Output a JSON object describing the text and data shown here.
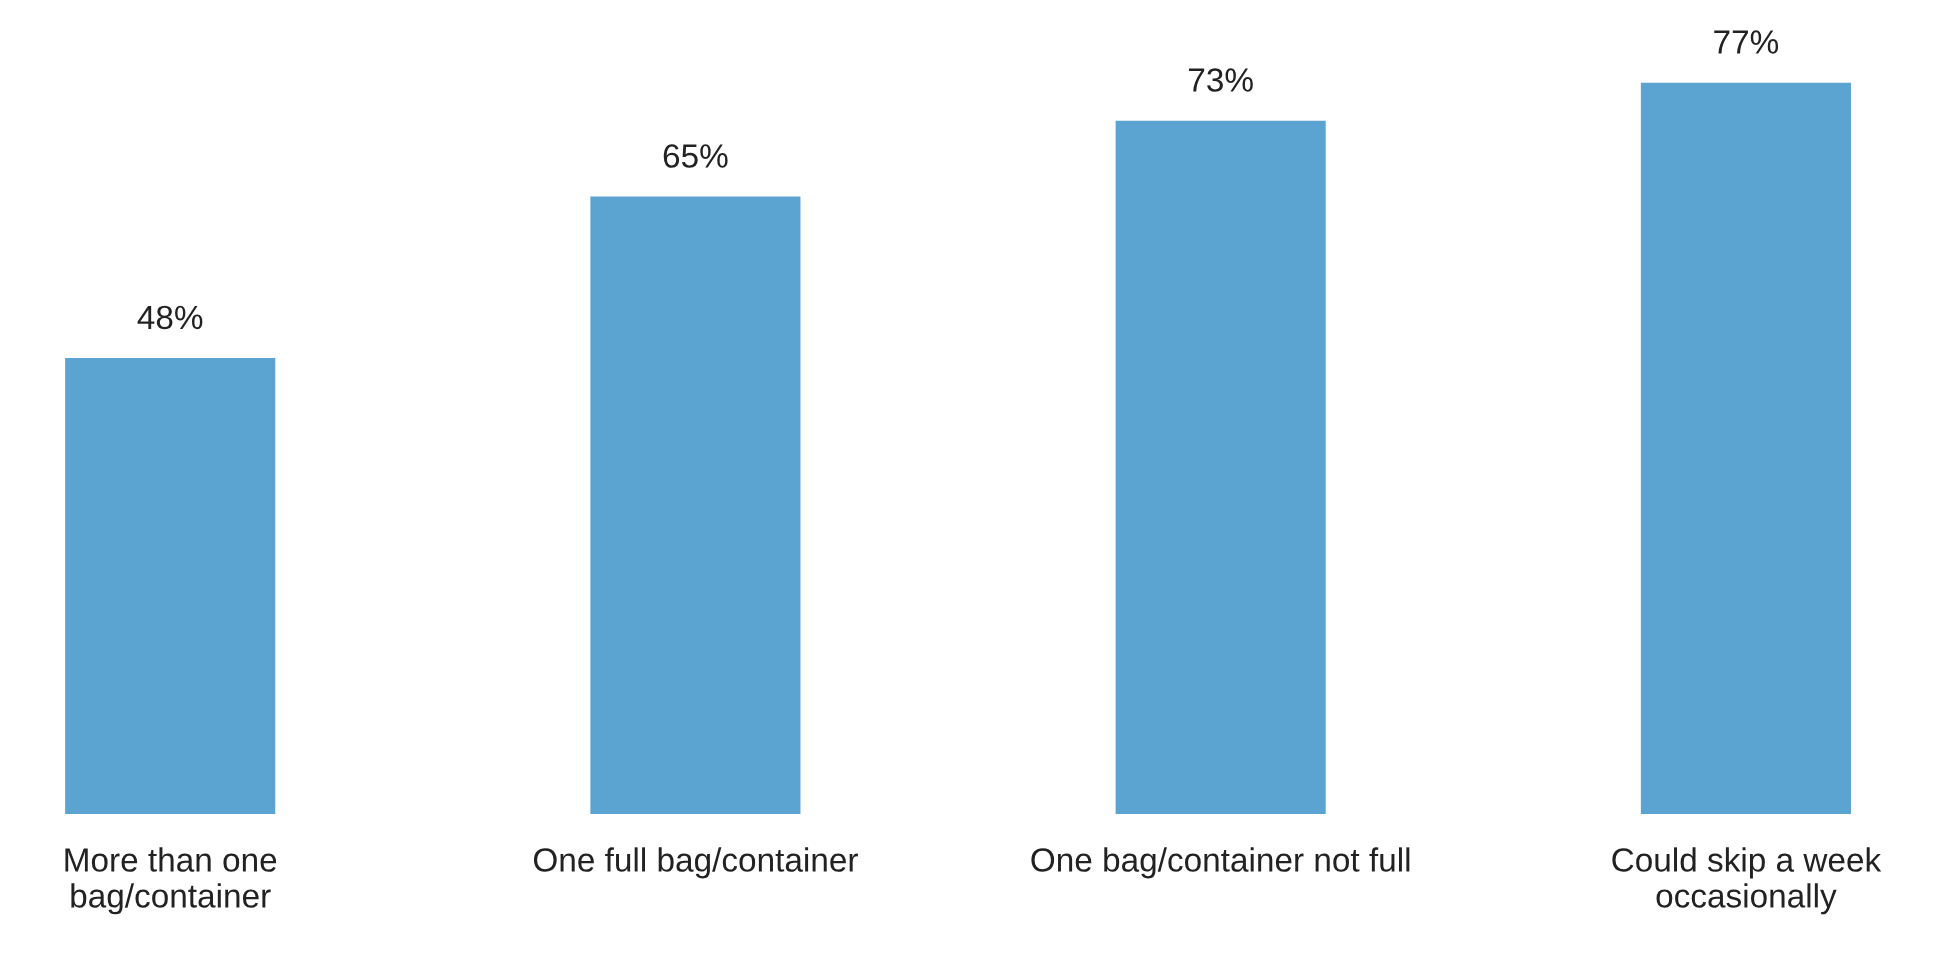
{
  "chart_data": {
    "type": "bar",
    "categories": [
      "More than one\nbag/container",
      "One full bag/container",
      "One bag/container not full",
      "Could skip a week\noccasionally"
    ],
    "values": [
      48,
      65,
      73,
      77
    ],
    "value_labels": [
      "48%",
      "65%",
      "73%",
      "77%"
    ],
    "color": "#5ba4d2",
    "grid": false,
    "legend": false
  }
}
